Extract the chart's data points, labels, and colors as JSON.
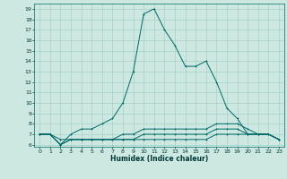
{
  "title": "",
  "xlabel": "Humidex (Indice chaleur)",
  "ylabel": "",
  "background_color": "#cce8e0",
  "grid_color": "#a8d0c8",
  "line_color": "#006868",
  "xlim": [
    -0.5,
    23.5
  ],
  "ylim": [
    5.8,
    19.5
  ],
  "yticks": [
    6,
    7,
    8,
    9,
    10,
    11,
    12,
    13,
    14,
    15,
    16,
    17,
    18,
    19
  ],
  "xticks": [
    0,
    1,
    2,
    3,
    4,
    5,
    6,
    7,
    8,
    9,
    10,
    11,
    12,
    13,
    14,
    15,
    16,
    17,
    18,
    19,
    20,
    21,
    22,
    23
  ],
  "lines": [
    {
      "x": [
        0,
        1,
        2,
        3,
        4,
        5,
        6,
        7,
        8,
        9,
        10,
        11,
        12,
        13,
        14,
        15,
        16,
        17,
        18,
        19,
        20,
        21,
        22,
        23
      ],
      "y": [
        7.0,
        7.0,
        6.0,
        7.0,
        7.5,
        7.5,
        8.0,
        8.5,
        10.0,
        13.0,
        18.5,
        19.0,
        17.0,
        15.5,
        13.5,
        13.5,
        14.0,
        12.0,
        9.5,
        8.5,
        7.0,
        7.0,
        7.0,
        6.5
      ]
    },
    {
      "x": [
        0,
        1,
        2,
        3,
        4,
        5,
        6,
        7,
        8,
        9,
        10,
        11,
        12,
        13,
        14,
        15,
        16,
        17,
        18,
        19,
        20,
        21,
        22,
        23
      ],
      "y": [
        7.0,
        7.0,
        6.5,
        6.5,
        6.5,
        6.5,
        6.5,
        6.5,
        7.0,
        7.0,
        7.5,
        7.5,
        7.5,
        7.5,
        7.5,
        7.5,
        7.5,
        8.0,
        8.0,
        8.0,
        7.5,
        7.0,
        7.0,
        6.5
      ]
    },
    {
      "x": [
        0,
        1,
        2,
        3,
        4,
        5,
        6,
        7,
        8,
        9,
        10,
        11,
        12,
        13,
        14,
        15,
        16,
        17,
        18,
        19,
        20,
        21,
        22,
        23
      ],
      "y": [
        7.0,
        7.0,
        6.0,
        6.5,
        6.5,
        6.5,
        6.5,
        6.5,
        6.5,
        6.5,
        7.0,
        7.0,
        7.0,
        7.0,
        7.0,
        7.0,
        7.0,
        7.5,
        7.5,
        7.5,
        7.0,
        7.0,
        7.0,
        6.5
      ]
    },
    {
      "x": [
        0,
        1,
        2,
        3,
        4,
        5,
        6,
        7,
        8,
        9,
        10,
        11,
        12,
        13,
        14,
        15,
        16,
        17,
        18,
        19,
        20,
        21,
        22,
        23
      ],
      "y": [
        7.0,
        7.0,
        6.0,
        6.5,
        6.5,
        6.5,
        6.5,
        6.5,
        6.5,
        6.5,
        6.5,
        6.5,
        6.5,
        6.5,
        6.5,
        6.5,
        6.5,
        7.0,
        7.0,
        7.0,
        7.0,
        7.0,
        7.0,
        6.5
      ]
    }
  ]
}
